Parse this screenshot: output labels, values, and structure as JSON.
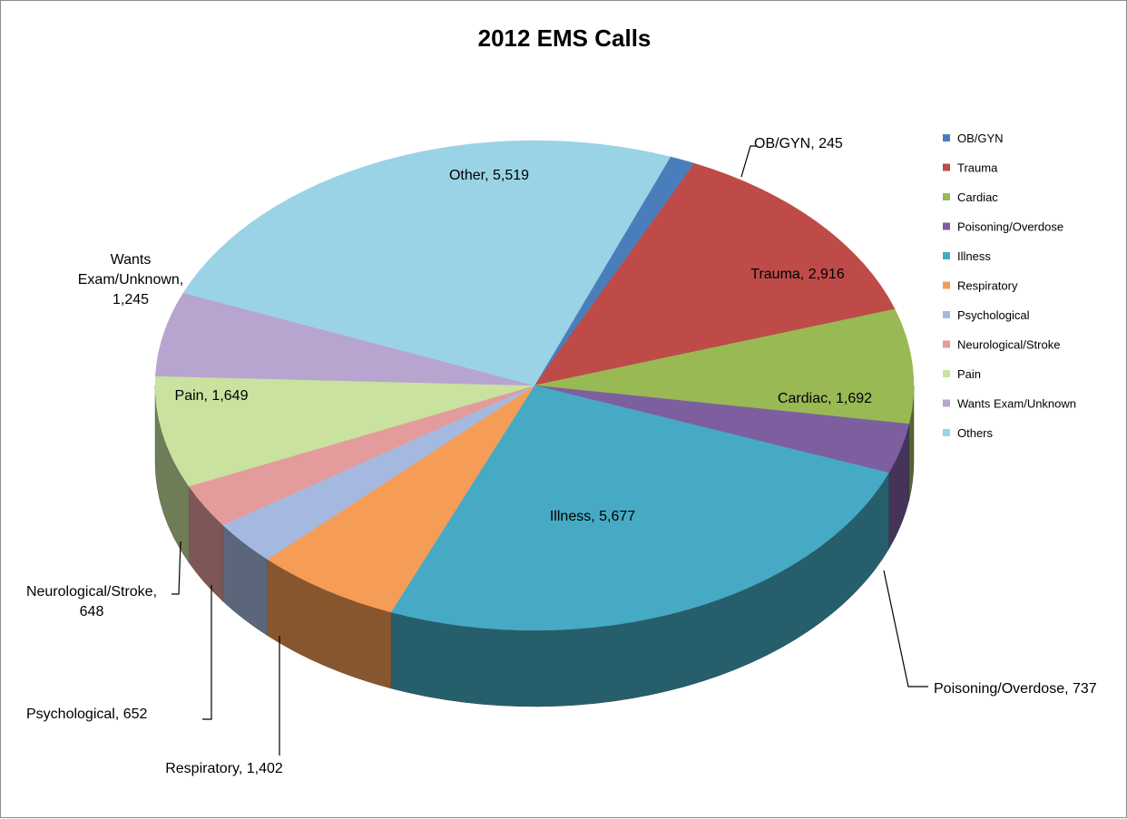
{
  "chart_data": {
    "type": "pie",
    "title": "2012 EMS Calls",
    "slices": [
      {
        "label": "OB/GYN",
        "value": 245,
        "data_label": "OB/GYN, 245",
        "color": "#4a7ebb"
      },
      {
        "label": "Trauma",
        "value": 2916,
        "data_label": "Trauma, 2,916",
        "color": "#be4b48"
      },
      {
        "label": "Cardiac",
        "value": 1692,
        "data_label": "Cardiac, 1,692",
        "color": "#98b954"
      },
      {
        "label": "Poisoning/Overdose",
        "value": 737,
        "data_label": "Poisoning/Overdose, 737",
        "color": "#7d5fa0"
      },
      {
        "label": "Illness",
        "value": 5677,
        "data_label": "Illness, 5,677",
        "color": "#46aac5"
      },
      {
        "label": "Respiratory",
        "value": 1402,
        "data_label": "Respiratory, 1,402",
        "color": "#f59d56"
      },
      {
        "label": "Psychological",
        "value": 652,
        "data_label": "Psychological, 652",
        "color": "#a5b9e0"
      },
      {
        "label": "Neurological/Stroke",
        "value": 648,
        "data_label": "Neurological/Stroke, 648",
        "color": "#e39c9b"
      },
      {
        "label": "Pain",
        "value": 1649,
        "data_label": "Pain, 1,649",
        "color": "#c9e2a0"
      },
      {
        "label": "Wants Exam/Unknown",
        "value": 1245,
        "data_label": "Wants Exam/Unknown, 1,245",
        "color": "#b8a5cf"
      },
      {
        "label": "Others",
        "value": 5519,
        "data_label": "Other, 5,519",
        "color": "#9ad3e6"
      }
    ],
    "legend_position": "right",
    "style": "3d-pie"
  }
}
